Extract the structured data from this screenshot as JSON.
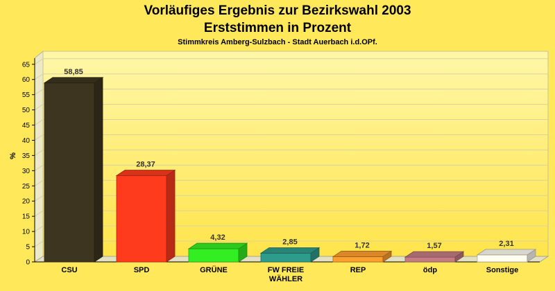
{
  "chart_data": {
    "type": "bar",
    "title": "Vorläufiges Ergebnis zur Bezirkswahl 2003",
    "subtitle": "Erststimmen in Prozent",
    "caption": "Stimmkreis Amberg-Sulzbach - Stadt Auerbach i.d.OPf.",
    "ylabel": "%",
    "xlabel": "",
    "ylim": [
      0,
      67
    ],
    "yticks": [
      0,
      5,
      10,
      15,
      20,
      25,
      30,
      35,
      40,
      45,
      50,
      55,
      60,
      65
    ],
    "grid": true,
    "legend": "none",
    "categories": [
      [
        "CSU"
      ],
      [
        "SPD"
      ],
      [
        "GRÜNE"
      ],
      [
        "FW FREIE",
        "WÄHLER"
      ],
      [
        "REP"
      ],
      [
        "ödp"
      ],
      [
        "Sonstige"
      ]
    ],
    "values": [
      58.85,
      28.37,
      4.32,
      2.85,
      1.72,
      1.57,
      2.31
    ],
    "value_labels": [
      "58,85",
      "28,37",
      "4,32",
      "2,85",
      "1,72",
      "1,57",
      "2,31"
    ],
    "colors": [
      "#3e3520",
      "#ff3b1e",
      "#33ee22",
      "#2e9c8c",
      "#ff9f2e",
      "#c47c84",
      "#fffcf0"
    ]
  }
}
